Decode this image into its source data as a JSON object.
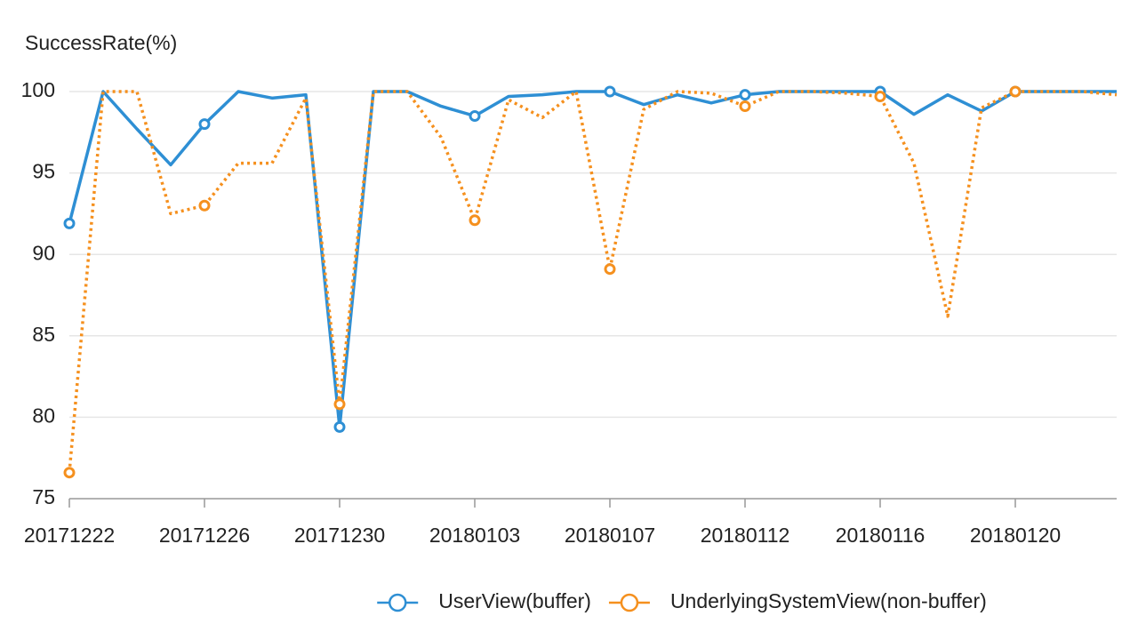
{
  "chart_data": {
    "type": "line",
    "title": "SuccessRate(%)",
    "categories": [
      "20171222",
      null,
      null,
      null,
      "20171226",
      null,
      null,
      null,
      "20171230",
      null,
      null,
      null,
      "20180103",
      null,
      null,
      null,
      "20180107",
      null,
      null,
      null,
      "20180112",
      null,
      null,
      null,
      "20180116",
      null,
      null,
      null,
      "20180120",
      null,
      null,
      null
    ],
    "series": [
      {
        "name": "UserView(buffer)",
        "color": "#2e8fd4",
        "dashed": false,
        "values": [
          91.9,
          100,
          97.7,
          95.5,
          98,
          100,
          99.6,
          99.8,
          79.4,
          100,
          100,
          99.1,
          98.5,
          99.7,
          99.8,
          100,
          100,
          99.2,
          99.8,
          99.3,
          99.8,
          100,
          100,
          100,
          100,
          98.6,
          99.8,
          98.8,
          100,
          100,
          100,
          100
        ]
      },
      {
        "name": "UnderlyingSystemView(non-buffer)",
        "color": "#f5901e",
        "dashed": true,
        "values": [
          76.6,
          100,
          100,
          92.5,
          93,
          95.6,
          95.6,
          99.6,
          80.8,
          100,
          100,
          97.2,
          92.1,
          99.5,
          98.4,
          100,
          89.1,
          98.9,
          100,
          99.9,
          99.1,
          100,
          100,
          99.9,
          99.7,
          95.6,
          86.2,
          99,
          100,
          100,
          100,
          99.8
        ]
      }
    ],
    "ylim": [
      75,
      100
    ],
    "yticks": [
      75,
      80,
      85,
      90,
      95,
      100
    ],
    "grid": true,
    "legend": "bottom"
  }
}
